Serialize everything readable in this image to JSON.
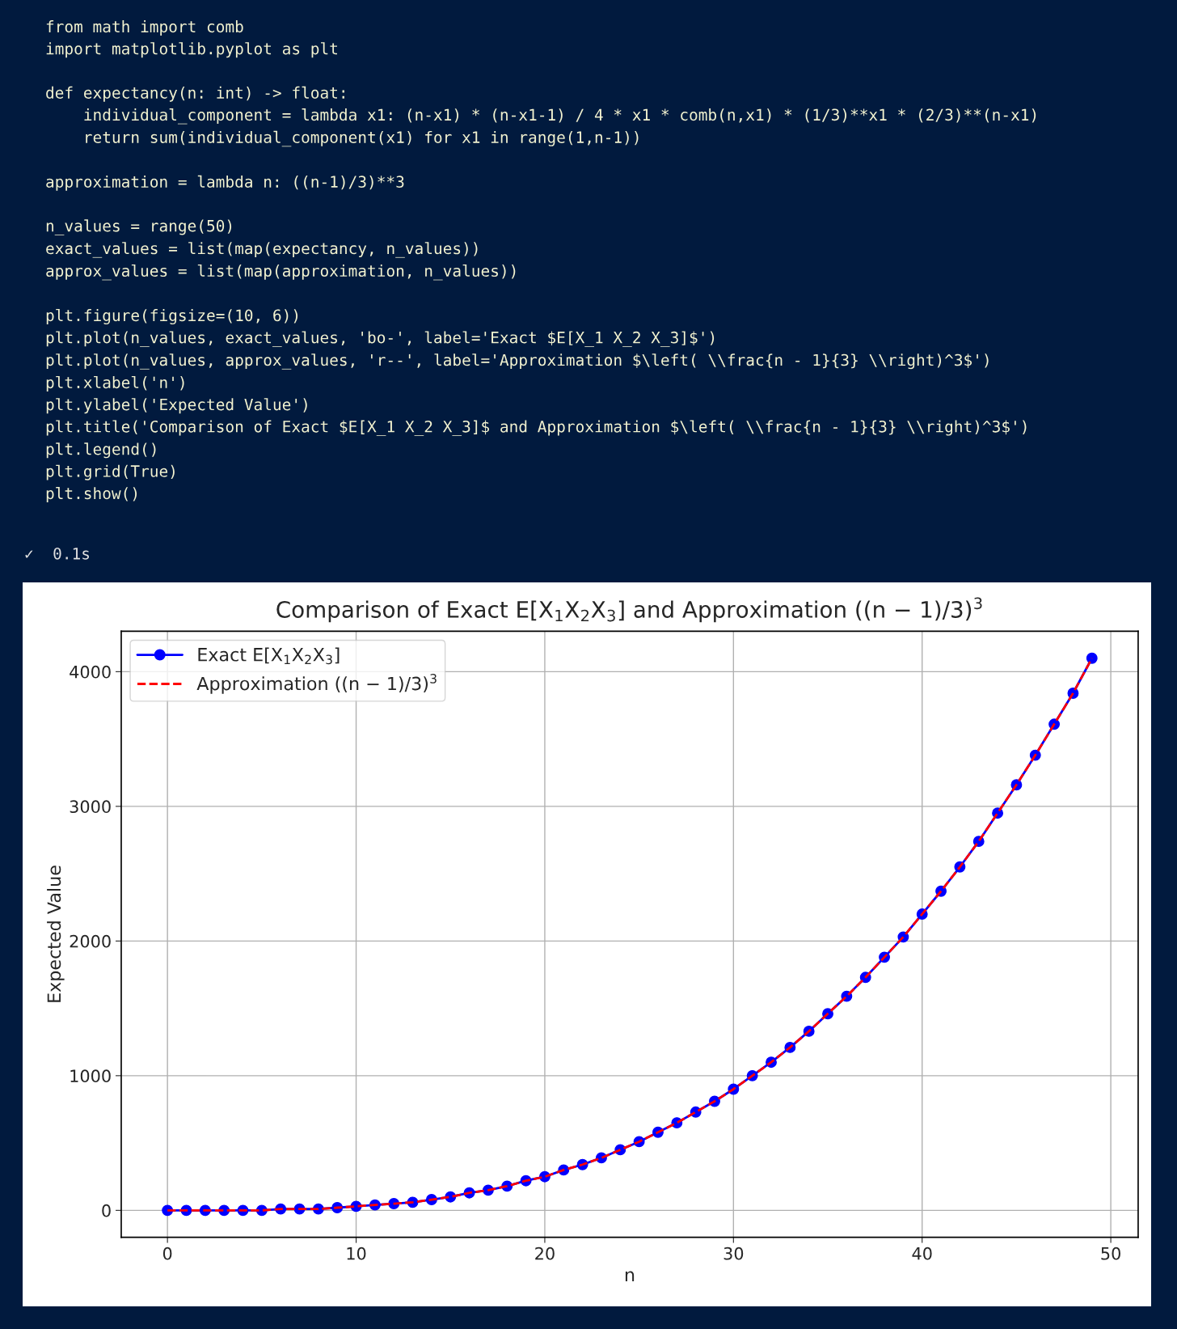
{
  "chart_data": {
    "type": "line",
    "title": "Comparison of Exact E[X$_{1}$X$_{2}$X$_{3}$] and Approximation ((n − 1)/3)$^{3}$",
    "xlabel": "n",
    "ylabel": "Expected Value",
    "x": [
      0,
      1,
      2,
      3,
      4,
      5,
      6,
      7,
      8,
      9,
      10,
      11,
      12,
      13,
      14,
      15,
      16,
      17,
      18,
      19,
      20,
      21,
      22,
      23,
      24,
      25,
      26,
      27,
      28,
      29,
      30,
      31,
      32,
      33,
      34,
      35,
      36,
      37,
      38,
      39,
      40,
      41,
      42,
      43,
      44,
      45,
      46,
      47,
      48,
      49
    ],
    "series": [
      {
        "name": "Exact E[X$_{1}$X$_{2}$X$_{3}$]",
        "color": "#0000ff",
        "marker": "circle",
        "line_style": "solid",
        "values": [
          0,
          0,
          0,
          0,
          0,
          0,
          10,
          10,
          10,
          20,
          30,
          40,
          50,
          60,
          80,
          100,
          130,
          150,
          180,
          220,
          250,
          300,
          340,
          390,
          450,
          510,
          580,
          650,
          730,
          810,
          900,
          1000,
          1100,
          1210,
          1330,
          1460,
          1590,
          1730,
          1880,
          2030,
          2200,
          2370,
          2550,
          2740,
          2950,
          3160,
          3380,
          3610,
          3840,
          4100
        ]
      },
      {
        "name": "Approximation ((n − 1)/3)$^{3}$",
        "color": "#ff0000",
        "marker": "none",
        "line_style": "dashed",
        "values": [
          0,
          0,
          0,
          0,
          0,
          0,
          10,
          10,
          10,
          20,
          30,
          40,
          50,
          60,
          80,
          100,
          130,
          150,
          180,
          220,
          250,
          300,
          340,
          390,
          450,
          510,
          580,
          650,
          730,
          810,
          900,
          1000,
          1100,
          1210,
          1330,
          1460,
          1590,
          1730,
          1880,
          2030,
          2200,
          2370,
          2550,
          2740,
          2950,
          3160,
          3380,
          3610,
          3840,
          4100
        ]
      }
    ],
    "xlim": [
      -2.45,
      51.45
    ],
    "xticks": [
      0,
      10,
      20,
      30,
      40,
      50
    ],
    "ylim": [
      -200,
      4300
    ],
    "yticks": [
      0,
      1000,
      2000,
      3000,
      4000
    ],
    "grid": true,
    "legend": "top left",
    "annotations": [
      "from math import comb\nimport matplotlib.pyplot as plt\n\ndef expectancy(n: int) -> float:\n    individual_component = lambda x1: (n-x1) * (n-x1-1) / 4 * x1 * comb(n,x1) * (1/3)**x1 * (2/3)**(n-x1)\n    return sum(individual_component(x1) for x1 in range(1,n-1))\n\napproximation = lambda n: ((n-1)/3)**3\n\nn_values = range(50)\nexact_values = list(map(expectancy, n_values))\napprox_values = list(map(approximation, n_values))\n\nplt.figure(figsize=(10, 6))\nplt.plot(n_values, exact_values, 'bo-', label='Exact $E[X_1 X_2 X_3]$')\nplt.plot(n_values, approx_values, 'r--', label='Approximation $\\left( \\\\frac{n - 1}{3} \\\\right)^3$')\nplt.xlabel('n')\nplt.ylabel('Expected Value')\nplt.title('Comparison of Exact $E[X_1 X_2 X_3]$ and Approximation $\\left( \\\\frac{n - 1}{3} \\\\right)^3$')\nplt.legend()\nplt.grid(True)\nplt.show()",
      "✓  0.1s"
    ]
  }
}
